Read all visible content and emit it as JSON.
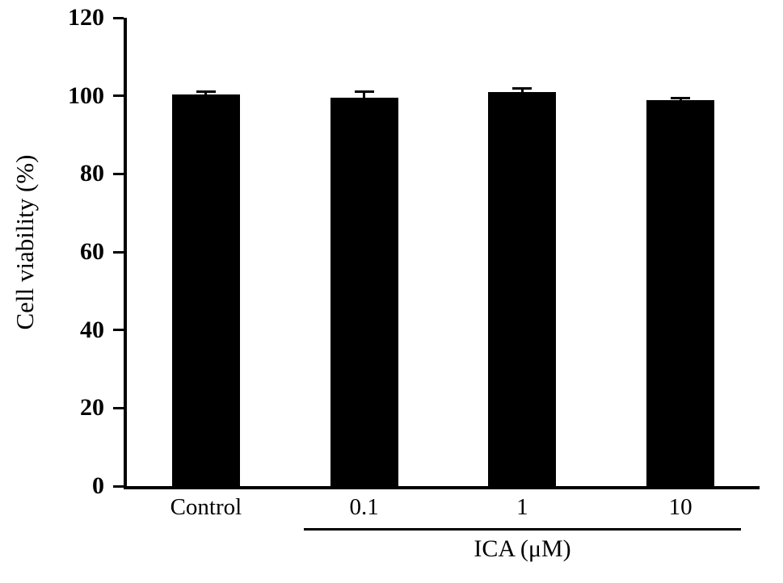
{
  "chart_data": {
    "type": "bar",
    "categories": [
      "Control",
      "0.1",
      "1",
      "10"
    ],
    "values": [
      100.3,
      99.5,
      101.0,
      98.8
    ],
    "errors": [
      0.8,
      1.5,
      0.8,
      0.6
    ],
    "title": "",
    "xlabel": "",
    "ylabel": "Cell viability (%)",
    "ylim": [
      0,
      120
    ],
    "yticks": [
      0,
      20,
      40,
      60,
      80,
      100,
      120
    ],
    "bar_color": "#000000",
    "axis_color": "#000000",
    "background_color": "#ffffff",
    "group_label": "ICA (μM)",
    "group_categories": [
      "0.1",
      "1",
      "10"
    ],
    "grid": false,
    "legend": null
  }
}
